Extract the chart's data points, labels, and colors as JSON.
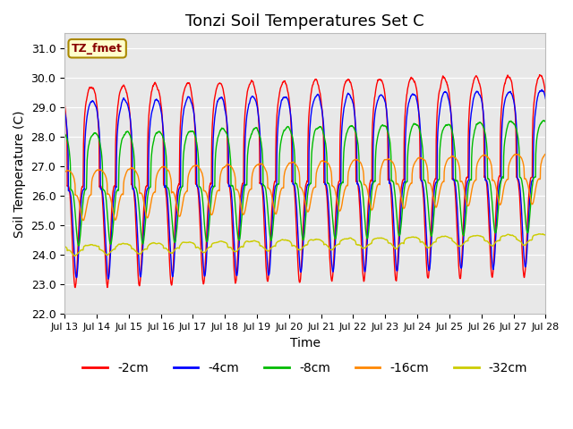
{
  "title": "Tonzi Soil Temperatures Set C",
  "xlabel": "Time",
  "ylabel": "Soil Temperature (C)",
  "ylim": [
    22.0,
    31.5
  ],
  "yticks": [
    22.0,
    23.0,
    24.0,
    25.0,
    26.0,
    27.0,
    28.0,
    29.0,
    30.0,
    31.0
  ],
  "plot_bg_color": "#e8e8e8",
  "annotation_text": "TZ_fmet",
  "annotation_bg": "#ffffcc",
  "annotation_border": "#aa8800",
  "legend_entries": [
    "-2cm",
    "-4cm",
    "-8cm",
    "-16cm",
    "-32cm"
  ],
  "line_colors": [
    "#ff0000",
    "#0000ff",
    "#00bb00",
    "#ff8800",
    "#cccc00"
  ],
  "n_days": 15,
  "spd": 144,
  "base_temp": 26.5,
  "trend": [
    0.025,
    0.025,
    0.03,
    0.04,
    0.025
  ],
  "amplitudes": [
    3.4,
    3.0,
    1.9,
    0.85,
    0.18
  ],
  "phase_lags_hrs": [
    0.0,
    0.8,
    2.5,
    6.0,
    0.0
  ],
  "depth_offsets": [
    -0.2,
    -0.3,
    -0.3,
    -0.5,
    -2.35
  ],
  "peak_hour": 14.0,
  "sharpness": 3.5,
  "xtick_labels": [
    "Jul 13",
    "Jul 14",
    "Jul 15",
    "Jul 16",
    "Jul 17",
    "Jul 18",
    "Jul 19",
    "Jul 20",
    "Jul 21",
    "Jul 22",
    "Jul 23",
    "Jul 24",
    "Jul 25",
    "Jul 26",
    "Jul 27",
    "Jul 28"
  ]
}
